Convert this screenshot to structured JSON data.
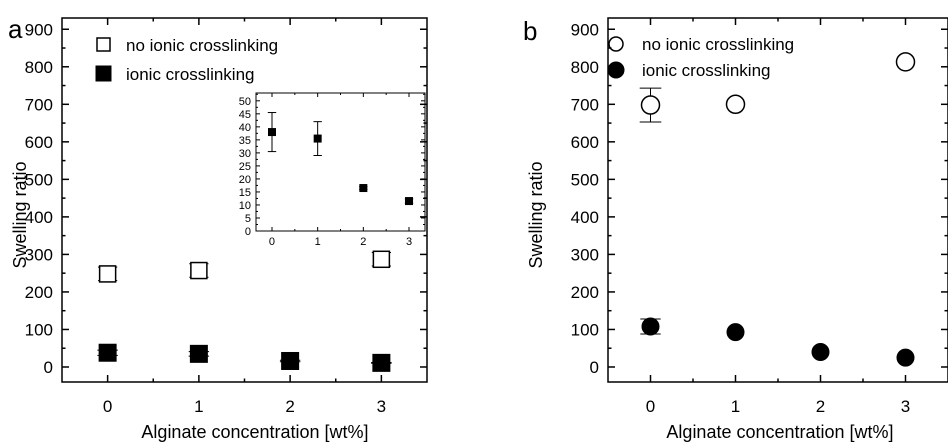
{
  "chart_data": [
    {
      "panel": "a",
      "type": "scatter",
      "xlabel": "Alginate concentration [wt%]",
      "ylabel": "Swelling ratio",
      "xlim": [
        -0.5,
        3.5
      ],
      "ylim": [
        -40,
        930
      ],
      "xticks": [
        "0",
        "1",
        "2",
        "3"
      ],
      "yticks": [
        "0",
        "100",
        "200",
        "300",
        "400",
        "500",
        "600",
        "700",
        "800",
        "900"
      ],
      "marker": "square",
      "series": [
        {
          "name": "no ionic crosslinking",
          "filled": false,
          "x": [
            0,
            1,
            3
          ],
          "y": [
            248,
            257,
            287
          ],
          "err": [
            18,
            18,
            18
          ]
        },
        {
          "name": "ionic crosslinking",
          "filled": true,
          "x": [
            0,
            1,
            2,
            3
          ],
          "y": [
            38,
            35,
            16,
            11
          ],
          "err": [
            7,
            6,
            2,
            1
          ]
        }
      ],
      "inset": {
        "type": "scatter",
        "xlim": [
          -0.35,
          3.35
        ],
        "ylim": [
          0,
          53
        ],
        "xticks": [
          "0",
          "1",
          "2",
          "3"
        ],
        "yticks": [
          "0",
          "5",
          "10",
          "15",
          "20",
          "25",
          "30",
          "35",
          "40",
          "45",
          "50"
        ],
        "x": [
          0,
          1,
          2,
          3
        ],
        "y": [
          38,
          35.5,
          16.5,
          11.5
        ],
        "err": [
          7.5,
          6.5,
          0.5,
          0.8
        ]
      }
    },
    {
      "panel": "b",
      "type": "scatter",
      "xlabel": "Alginate concentration [wt%]",
      "ylabel": "Swelling ratio",
      "xlim": [
        -0.5,
        3.5
      ],
      "ylim": [
        -40,
        930
      ],
      "xticks": [
        "0",
        "1",
        "2",
        "3"
      ],
      "yticks": [
        "0",
        "100",
        "200",
        "300",
        "400",
        "500",
        "600",
        "700",
        "800",
        "900"
      ],
      "marker": "circle",
      "series": [
        {
          "name": "no ionic crosslinking",
          "filled": false,
          "x": [
            0,
            1,
            3
          ],
          "y": [
            698,
            700,
            813
          ],
          "err": [
            45,
            0,
            0
          ]
        },
        {
          "name": "ionic crosslinking",
          "filled": true,
          "x": [
            0,
            1,
            2,
            3
          ],
          "y": [
            108,
            93,
            40,
            25
          ],
          "err": [
            20,
            0,
            0,
            0
          ]
        }
      ]
    }
  ]
}
